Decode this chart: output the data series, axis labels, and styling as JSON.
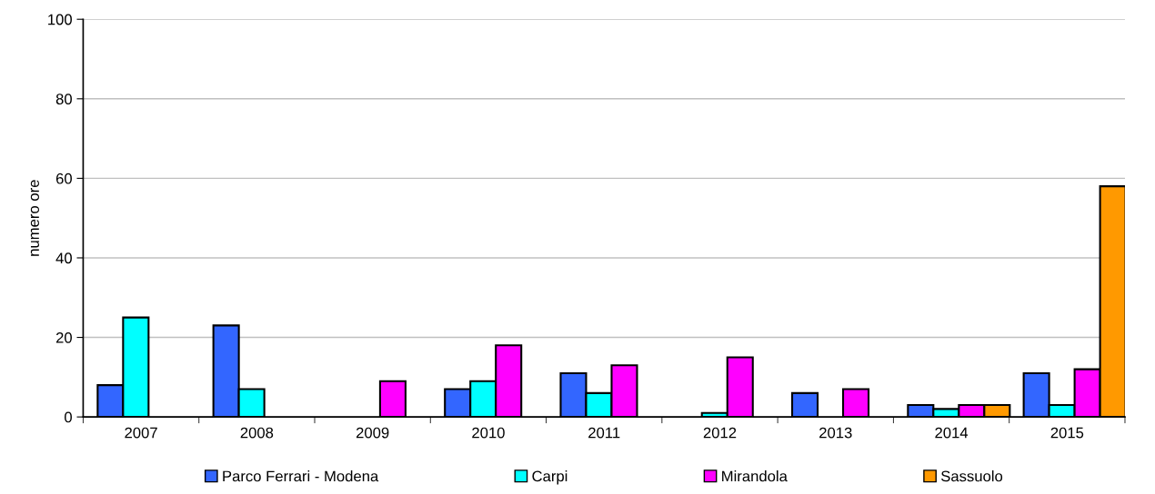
{
  "chart_data": {
    "type": "bar",
    "ylabel": "numero ore",
    "categories": [
      "2007",
      "2008",
      "2009",
      "2010",
      "2011",
      "2012",
      "2013",
      "2014",
      "2015"
    ],
    "series": [
      {
        "name": "Parco Ferrari - Modena",
        "color": "#3366ff",
        "values": [
          8,
          23,
          null,
          7,
          11,
          null,
          6,
          3,
          11
        ]
      },
      {
        "name": "Carpi",
        "color": "#00ffff",
        "values": [
          25,
          7,
          null,
          9,
          6,
          1,
          null,
          2,
          3
        ]
      },
      {
        "name": "Mirandola",
        "color": "#ff00ff",
        "values": [
          null,
          null,
          9,
          18,
          13,
          15,
          7,
          3,
          12
        ]
      },
      {
        "name": "Sassuolo",
        "color": "#ff9900",
        "values": [
          null,
          null,
          null,
          null,
          null,
          null,
          null,
          3,
          58
        ]
      }
    ],
    "ylim": [
      0,
      100
    ],
    "yticks": [
      0,
      20,
      40,
      60,
      80,
      100
    ],
    "grid": "y",
    "legend": "bottom"
  }
}
